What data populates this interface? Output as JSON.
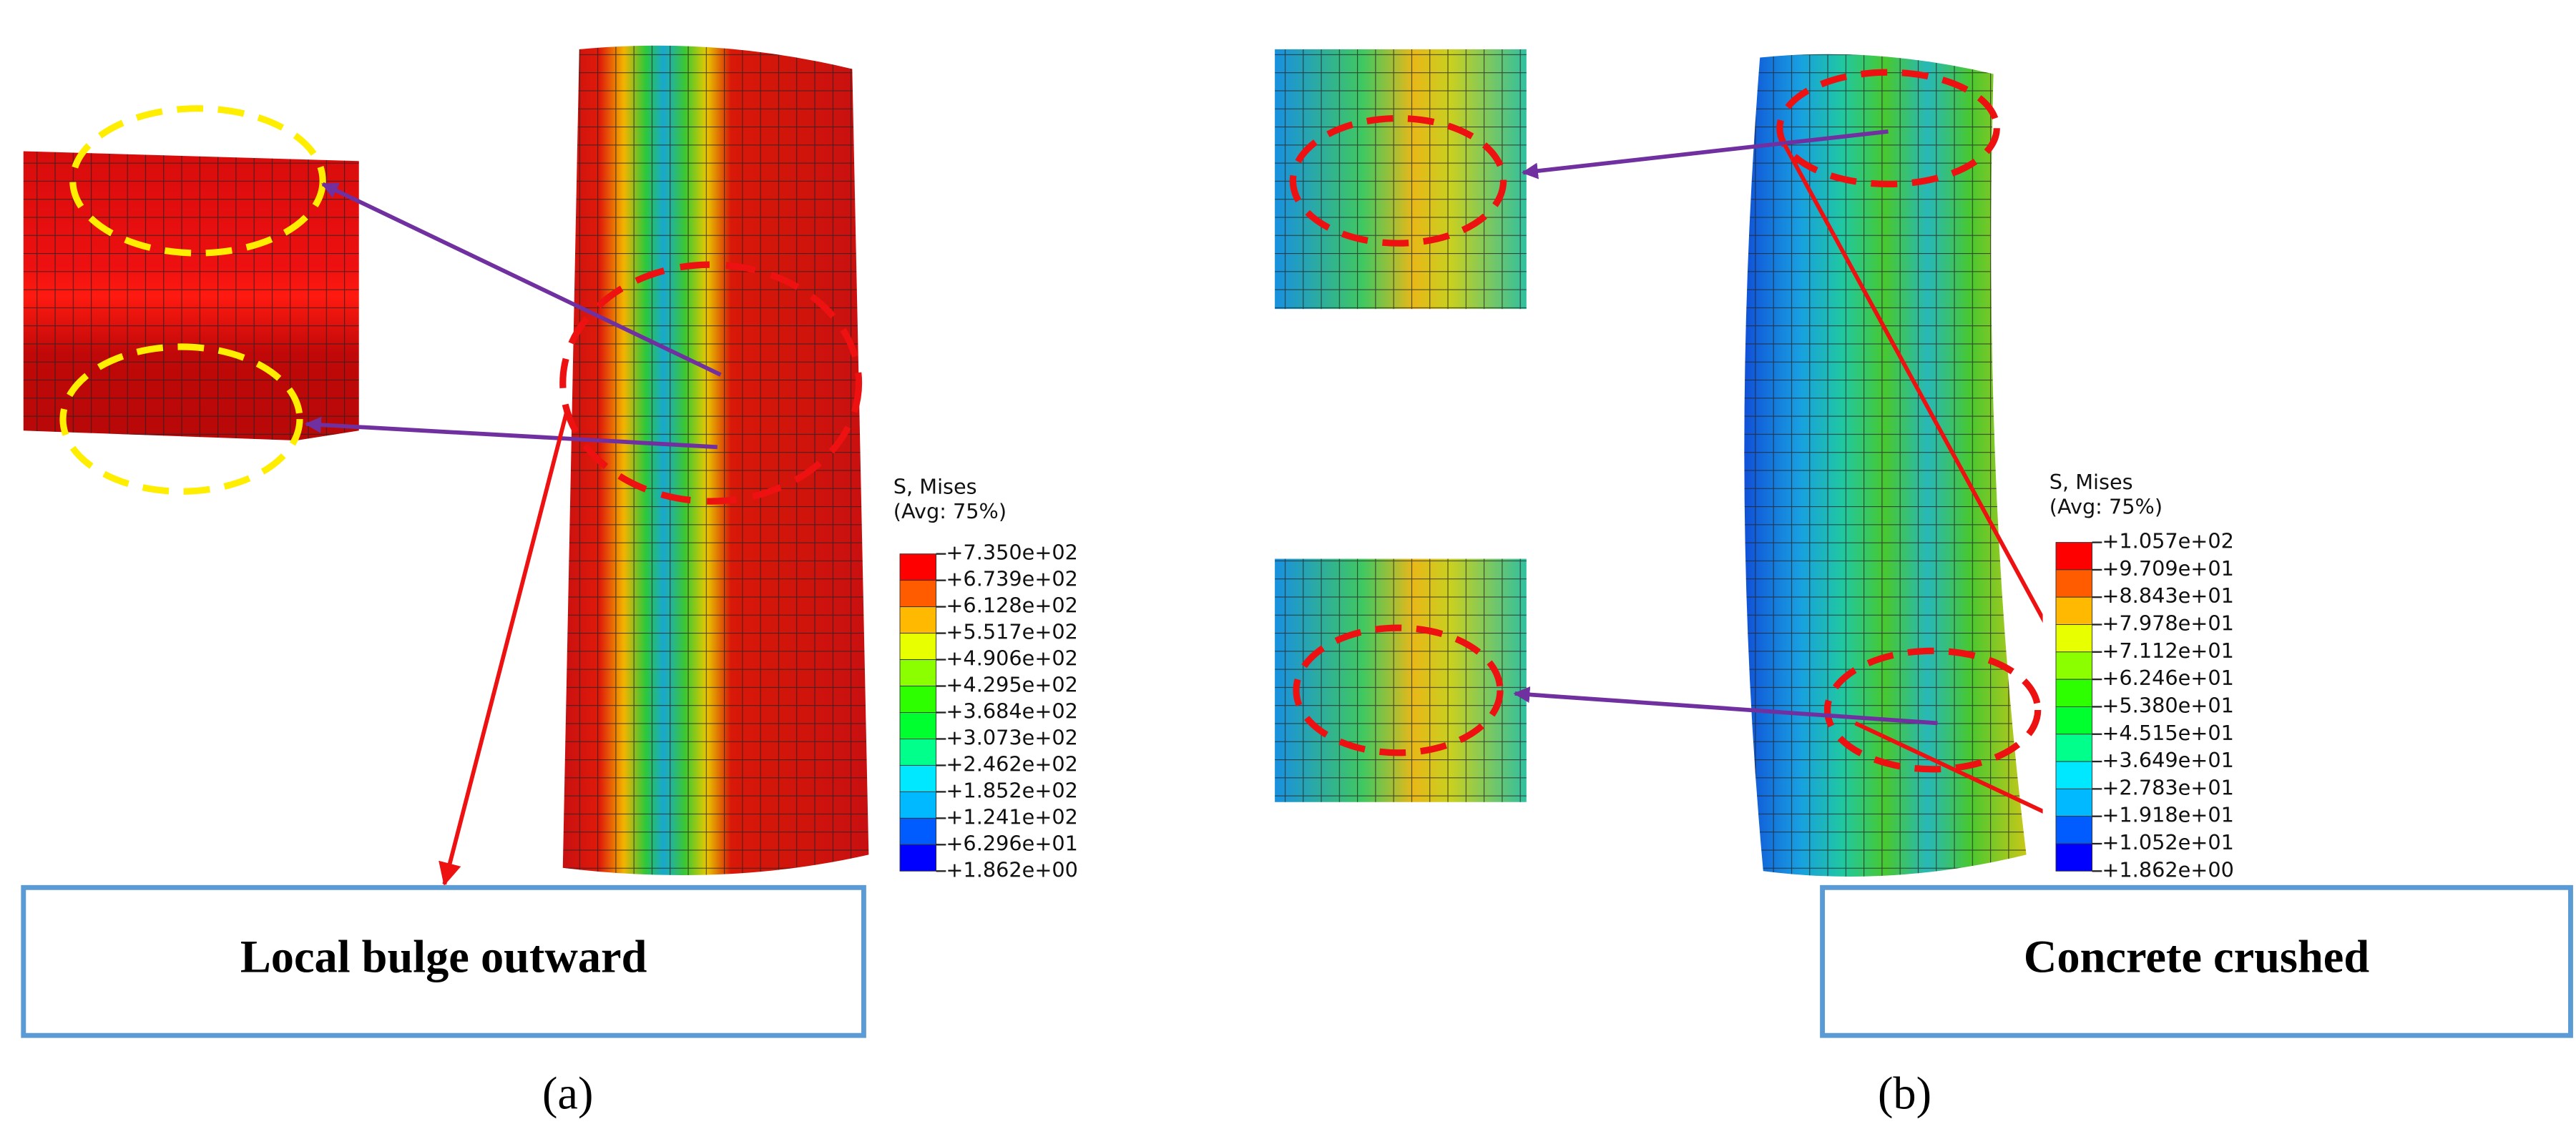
{
  "panels": [
    {
      "label": "(a)",
      "callout": "Local bulge outward",
      "legend": {
        "title": "S, Mises",
        "subtitle": "(Avg: 75%)",
        "values": [
          "+7.350e+02",
          "+6.739e+02",
          "+6.128e+02",
          "+5.517e+02",
          "+4.906e+02",
          "+4.295e+02",
          "+3.684e+02",
          "+3.073e+02",
          "+2.462e+02",
          "+1.852e+02",
          "+1.241e+02",
          "+6.296e+01",
          "+1.862e+00"
        ]
      }
    },
    {
      "label": "(b)",
      "callout": "Concrete crushed",
      "legend": {
        "title": "S, Mises",
        "subtitle": "(Avg: 75%)",
        "values": [
          "+1.057e+02",
          "+9.709e+01",
          "+8.843e+01",
          "+7.978e+01",
          "+7.112e+01",
          "+6.246e+01",
          "+5.380e+01",
          "+4.515e+01",
          "+3.649e+01",
          "+2.783e+01",
          "+1.918e+01",
          "+1.052e+01",
          "+1.862e+00"
        ]
      }
    }
  ]
}
